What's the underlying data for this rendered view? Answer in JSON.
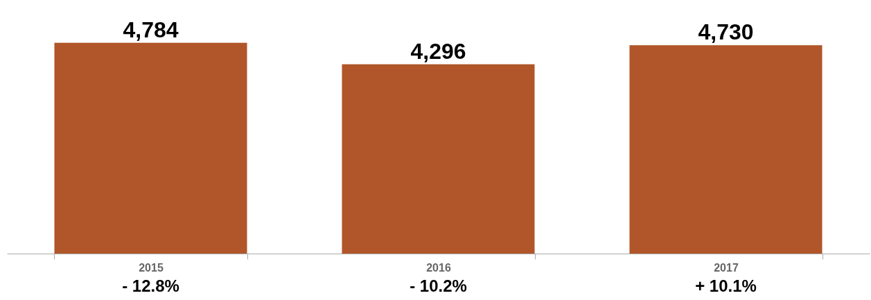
{
  "chart_data": {
    "type": "bar",
    "categories": [
      "2015",
      "2016",
      "2017"
    ],
    "values": [
      4784,
      4296,
      4730
    ],
    "color": "#b0562a",
    "value_labels": [
      "4,784",
      "4,296",
      "4,730"
    ],
    "annotations": [
      "- 12.8%",
      "- 10.2%",
      "+ 10.1%"
    ]
  }
}
